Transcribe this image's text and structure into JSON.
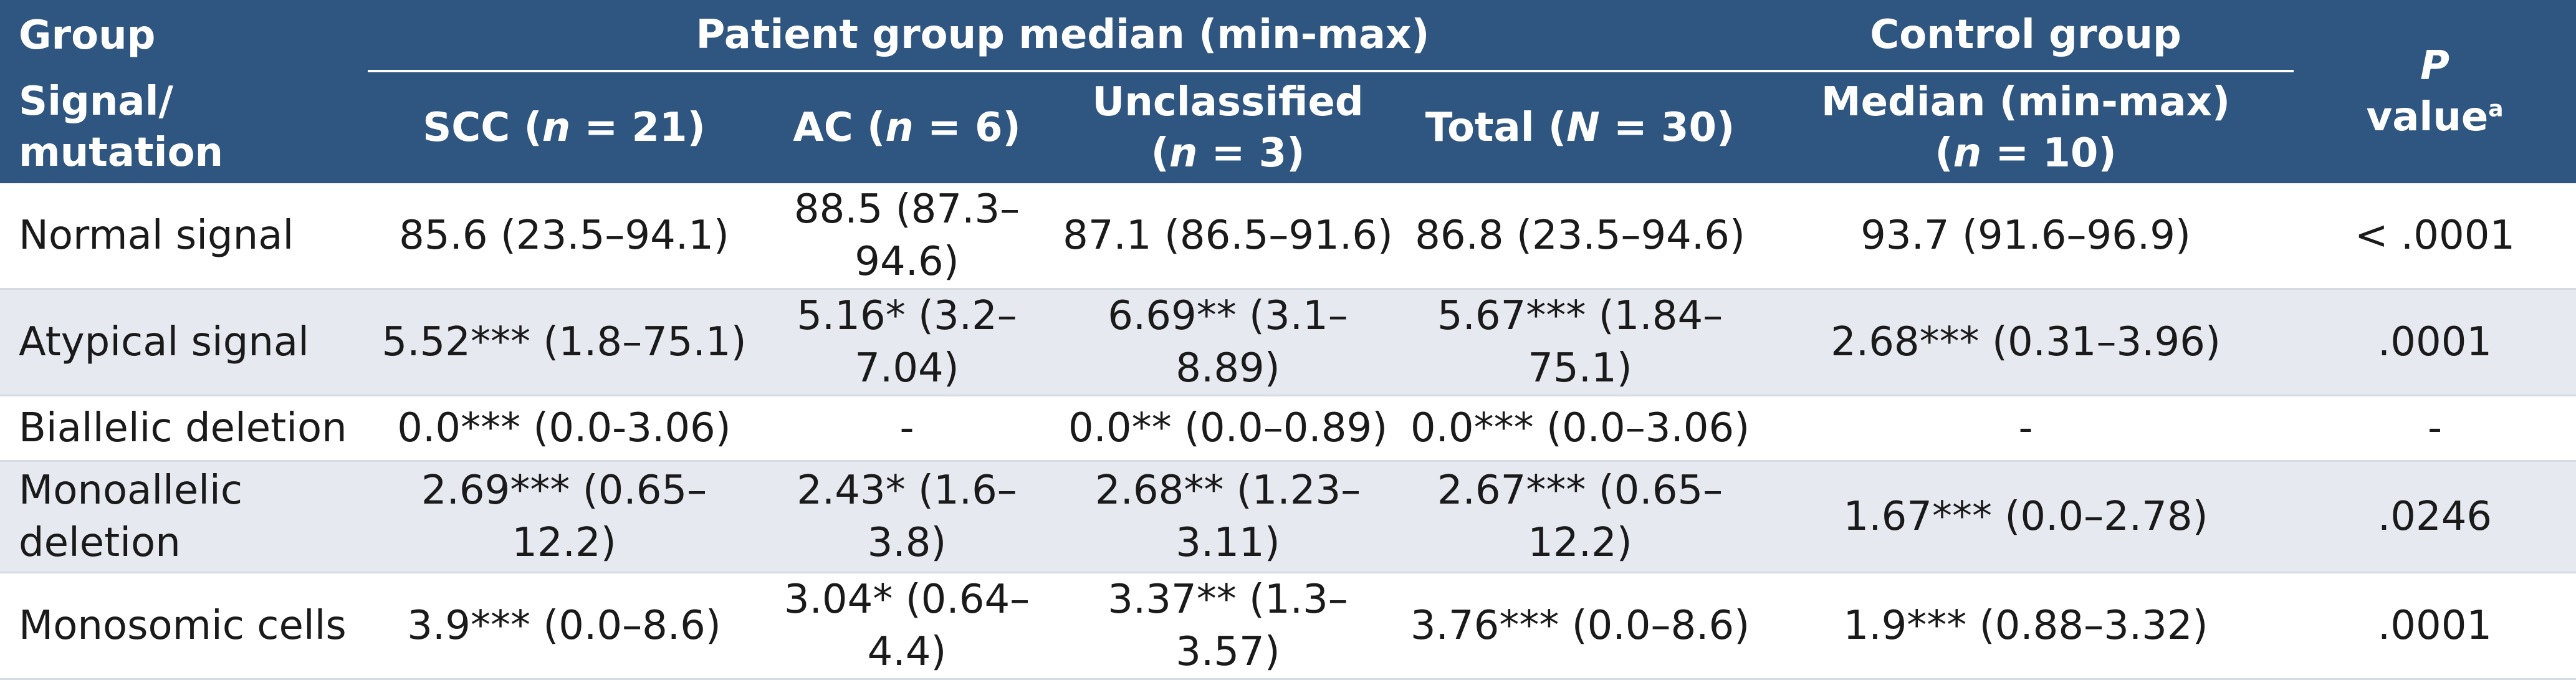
{
  "header": {
    "group": "Group",
    "patient_group": "Patient group median (min-max)",
    "control_group": "Control group",
    "p_value_p": "P",
    "p_value_word": "value",
    "p_value_sup": "a",
    "signal_mutation": "Signal/ mutation",
    "scc_prefix": "SCC (",
    "scc_n": "n",
    "scc_suffix": " = 21)",
    "ac_prefix": "AC (",
    "ac_n": "n",
    "ac_suffix": " = 6)",
    "unclassified": "Unclassified",
    "unc_prefix": "(",
    "unc_n": "n",
    "unc_suffix": " = 3)",
    "total_prefix": "Total (",
    "total_n": "N",
    "total_suffix": " = 30)",
    "ctrl_median": "Median (min-max)",
    "ctrl_prefix": "(",
    "ctrl_n": "n",
    "ctrl_suffix": " = 10)"
  },
  "rows": [
    {
      "label": "Normal signal",
      "scc": "85.6 (23.5–94.1)",
      "ac": "88.5 (87.3–94.6)",
      "unclassified": "87.1 (86.5–91.6)",
      "total": "86.8 (23.5–94.6)",
      "control": "93.7 (91.6–96.9)",
      "p": "< .0001"
    },
    {
      "label": "Atypical signal",
      "scc": "5.52*** (1.8–75.1)",
      "ac": "5.16* (3.2–7.04)",
      "unclassified": "6.69** (3.1–8.89)",
      "total": "5.67*** (1.84–75.1)",
      "control": "2.68*** (0.31–3.96)",
      "p": ".0001"
    },
    {
      "label": "Biallelic deletion",
      "scc": "0.0*** (0.0-3.06)",
      "ac": "-",
      "unclassified": "0.0** (0.0–0.89)",
      "total": "0.0*** (0.0–3.06)",
      "control": "-",
      "p": "-"
    },
    {
      "label": "Monoallelic deletion",
      "scc": "2.69*** (0.65–12.2)",
      "ac": "2.43* (1.6–3.8)",
      "unclassified": "2.68** (1.23–3.11)",
      "total": "2.67*** (0.65–12.2)",
      "control": "1.67*** (0.0–2.78)",
      "p": ".0246"
    },
    {
      "label": "Monosomic cells",
      "scc": "3.9*** (0.0–8.6)",
      "ac": "3.04* (0.64–4.4)",
      "unclassified": "3.37** (1.3–3.57)",
      "total": "3.76*** (0.0–8.6)",
      "control": "1.9*** (0.88–3.32)",
      "p": ".0001"
    }
  ]
}
